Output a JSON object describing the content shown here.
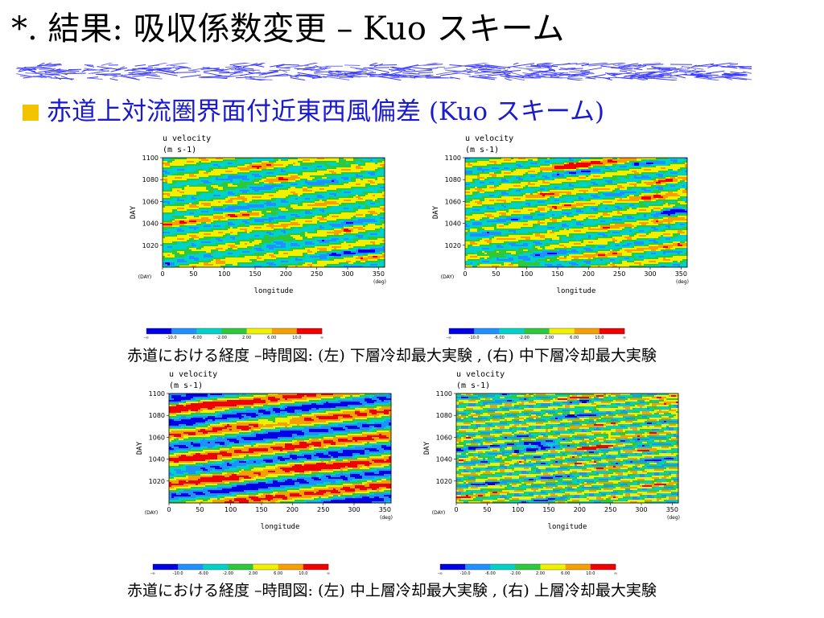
{
  "header": {
    "title": "*. 結果: 吸収係数変更 – Kuo スキーム",
    "subtitle": "赤道上対流圏界面付近東西風偏差 (Kuo スキーム)"
  },
  "captions": {
    "row1": "赤道における経度 –時間図: (左) 下層冷却最大実験 , (右) 中下層冷却最大実験",
    "row2": "赤道における経度 –時間図: (左) 中上層冷却最大実験 , (右) 上層冷却最大実験"
  },
  "colors": {
    "accent_bullet": "#f4c300",
    "subtitle_text": "#1a1ad0",
    "palette": [
      "#0000e6",
      "#1e90ff",
      "#00d2c8",
      "#2dc83c",
      "#f0f000",
      "#f5a000",
      "#f00000"
    ]
  },
  "chart_data": [
    {
      "type": "heatmap",
      "id": "lower-cooling",
      "title": "u velocity",
      "units": "(m s-1)",
      "xlabel": "longitude",
      "xunit": "(deg)",
      "ylabel": "DAY",
      "yunit": "(DAY)",
      "xlim": [
        0,
        360
      ],
      "ylim": [
        1000,
        1100
      ],
      "xticks": [
        0,
        50,
        100,
        150,
        200,
        250,
        300,
        350
      ],
      "yticks": [
        1020,
        1040,
        1060,
        1080,
        1100
      ],
      "color_levels": [
        "-∞",
        "-10.0",
        "-6.00",
        "-2.00",
        "2.00",
        "6.00",
        "10.0",
        "∞"
      ],
      "seed": 11,
      "propagation_deg_per_day": 13,
      "wavenumber": 2,
      "amplitude": 5.5,
      "noise": 4.0
    },
    {
      "type": "heatmap",
      "id": "mid-lower-cooling",
      "title": "u velocity",
      "units": "(m s-1)",
      "xlabel": "longitude",
      "xunit": "(deg)",
      "ylabel": "DAY",
      "yunit": "(DAY)",
      "xlim": [
        0,
        360
      ],
      "ylim": [
        1000,
        1100
      ],
      "xticks": [
        0,
        50,
        100,
        150,
        200,
        250,
        300,
        350
      ],
      "yticks": [
        1020,
        1040,
        1060,
        1080,
        1100
      ],
      "color_levels": [
        "-∞",
        "-10.0",
        "-6.00",
        "-2.00",
        "2.00",
        "6.00",
        "10.0",
        "∞"
      ],
      "seed": 23,
      "propagation_deg_per_day": 15,
      "wavenumber": 2,
      "amplitude": 5.5,
      "noise": 4.5
    },
    {
      "type": "heatmap",
      "id": "mid-upper-cooling",
      "title": "u velocity",
      "units": "(m s-1)",
      "xlabel": "longitude",
      "xunit": "(deg)",
      "ylabel": "DAY",
      "yunit": "(DAY)",
      "xlim": [
        0,
        360
      ],
      "ylim": [
        1000,
        1100
      ],
      "xticks": [
        0,
        50,
        100,
        150,
        200,
        250,
        300,
        350
      ],
      "yticks": [
        1020,
        1040,
        1060,
        1080,
        1100
      ],
      "color_levels": [
        "-∞",
        "-10.0",
        "-6.00",
        "-2.00",
        "2.00",
        "6.00",
        "10.0",
        "∞"
      ],
      "seed": 37,
      "propagation_deg_per_day": 16,
      "wavenumber": 1,
      "amplitude": 11,
      "noise": 3.5
    },
    {
      "type": "heatmap",
      "id": "upper-cooling",
      "title": "u velocity",
      "units": "(m s-1)",
      "xlabel": "longitude",
      "xunit": "(deg)",
      "ylabel": "DAY",
      "yunit": "(DAY)",
      "xlim": [
        0,
        360
      ],
      "ylim": [
        1000,
        1100
      ],
      "xticks": [
        0,
        50,
        100,
        150,
        200,
        250,
        300,
        350
      ],
      "yticks": [
        1020,
        1040,
        1060,
        1080,
        1100
      ],
      "color_levels": [
        "-∞",
        "-10.0",
        "-6.00",
        "-2.00",
        "2.00",
        "6.00",
        "10.0",
        "∞"
      ],
      "seed": 53,
      "propagation_deg_per_day": 18,
      "wavenumber": 3,
      "amplitude": 6.5,
      "noise": 6.0
    }
  ]
}
